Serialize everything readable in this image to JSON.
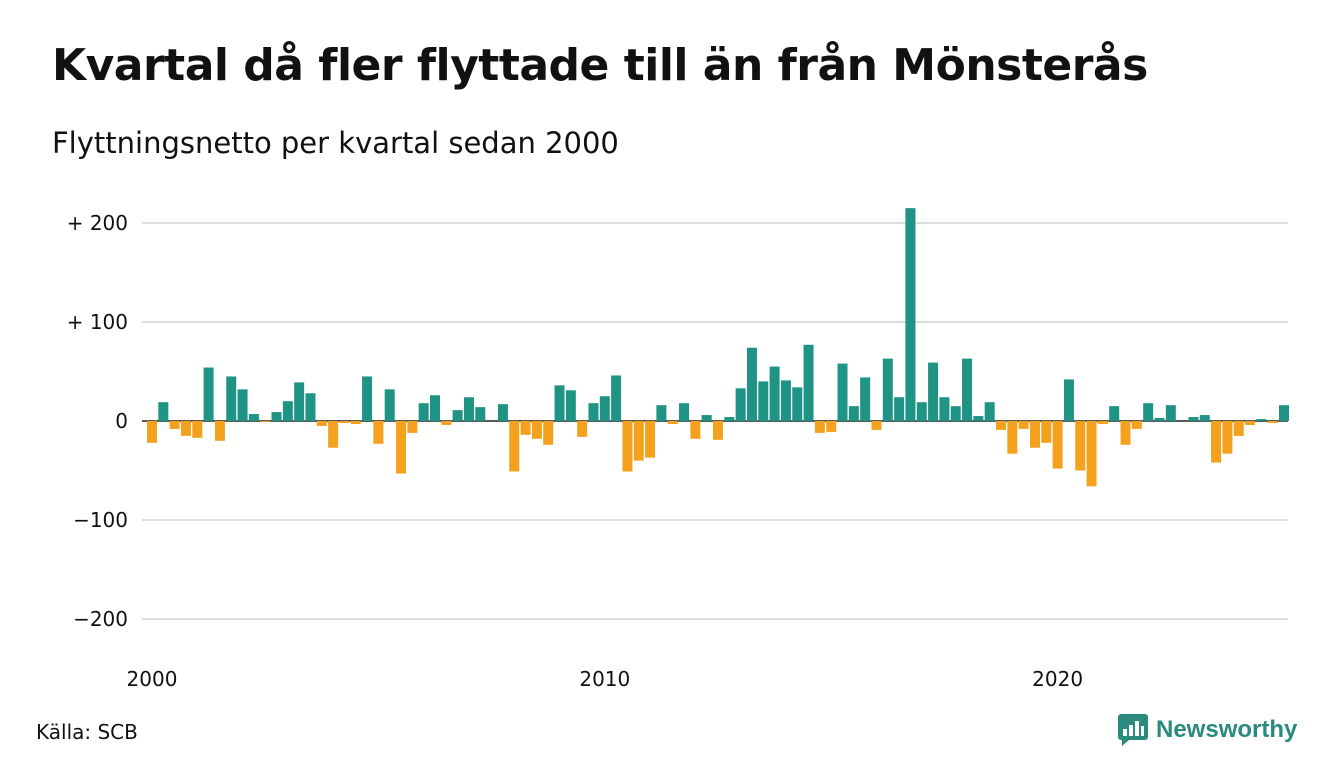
{
  "title": "Kvartal då fler flyttade till än från Mönsterås",
  "subtitle": "Flyttningsnetto per kvartal sedan 2000",
  "source": "Källa: SCB",
  "brand": "Newsworthy",
  "colors": {
    "positive": "#1f9484",
    "negative": "#f4a11d",
    "grid": "#dddddd",
    "text": "#111111",
    "brand": "#2a8a7e"
  },
  "chart_data": {
    "type": "bar",
    "ylim": [
      -220,
      220
    ],
    "y_ticks": [
      {
        "value": 200,
        "label": "+ 200"
      },
      {
        "value": 100,
        "label": "+ 100"
      },
      {
        "value": 0,
        "label": "0"
      },
      {
        "value": -100,
        "label": "−100"
      },
      {
        "value": -200,
        "label": "−200"
      }
    ],
    "x_ticks": [
      {
        "index": 0,
        "label": "2000"
      },
      {
        "index": 40,
        "label": "2010"
      },
      {
        "index": 80,
        "label": "2020"
      }
    ],
    "start": "2000 Q1",
    "values": [
      -22,
      19,
      -8,
      -15,
      -17,
      54,
      -20,
      45,
      32,
      7,
      -1,
      9,
      20,
      39,
      28,
      -5,
      -27,
      -2,
      -3,
      45,
      -23,
      32,
      -53,
      -12,
      18,
      26,
      -4,
      11,
      24,
      14,
      0,
      17,
      -51,
      -14,
      -18,
      -24,
      36,
      31,
      -16,
      18,
      25,
      46,
      -51,
      -40,
      -37,
      16,
      -3,
      18,
      -18,
      6,
      -19,
      4,
      33,
      74,
      40,
      55,
      41,
      34,
      77,
      -12,
      -11,
      58,
      15,
      44,
      -9,
      63,
      24,
      215,
      19,
      59,
      24,
      15,
      63,
      5,
      19,
      -9,
      -33,
      -8,
      -27,
      -22,
      -48,
      42,
      -50,
      -66,
      -3,
      15,
      -24,
      -8,
      18,
      3,
      16,
      0,
      4,
      6,
      -42,
      -33,
      -15,
      -4,
      2,
      -2,
      16
    ]
  }
}
